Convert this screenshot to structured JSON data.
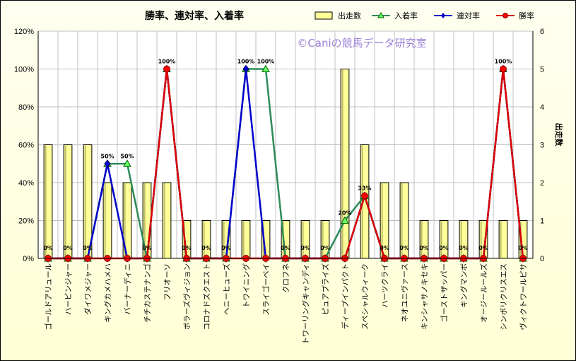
{
  "chart_data": {
    "type": "bar+line",
    "title": "勝率、連対率、入着率",
    "watermark": "©Caniの競馬データ研究室",
    "y2label": "出走数",
    "ylim": [
      0,
      120
    ],
    "y2lim": [
      0,
      6
    ],
    "y_ticks": [
      "0%",
      "20%",
      "40%",
      "60%",
      "80%",
      "100%",
      "120%"
    ],
    "y2_ticks": [
      "0",
      "1",
      "2",
      "3",
      "4",
      "5",
      "6"
    ],
    "legend_position": "top-right",
    "legend": [
      "出走数",
      "入着率",
      "連対率",
      "勝率"
    ],
    "categories": [
      "ゴールドアリュール",
      "ハービンジャー",
      "ダイワメジャー",
      "キングカメハメハ",
      "バーナーディニ",
      "チチカステナンゴ",
      "フリオーソ",
      "ボラーズヴィジョン",
      "コロナドズクエスト",
      "ヘニーヒューズ",
      "トワイニング",
      "スライゴーベイ",
      "クロフネ",
      "トワーリングキャンディ",
      "ピュアプライズ",
      "ディープインパクト",
      "スペシャルウィーク",
      "ハーツクライ",
      "ネオユニヴァース",
      "キンシャサノキセキ",
      "ゴーストザッパー",
      "キングマンボ",
      "オージールールズ",
      "シンボリクリスエス",
      "ヴィクトワールピサ"
    ],
    "series": [
      {
        "name": "出走数",
        "axis": "y2",
        "kind": "bar",
        "color": "#ffff99",
        "values": [
          3,
          3,
          3,
          2,
          2,
          2,
          2,
          1,
          1,
          1,
          1,
          1,
          1,
          1,
          1,
          5,
          3,
          2,
          2,
          1,
          1,
          1,
          1,
          1,
          1
        ]
      },
      {
        "name": "入着率",
        "axis": "y",
        "kind": "line",
        "color": "#2e8b57",
        "values": [
          0,
          0,
          0,
          50,
          50,
          0,
          100,
          0,
          0,
          0,
          100,
          100,
          0,
          0,
          0,
          20,
          33,
          0,
          0,
          0,
          0,
          0,
          0,
          100,
          0
        ]
      },
      {
        "name": "連対率",
        "axis": "y",
        "kind": "line",
        "color": "#0000cc",
        "values": [
          0,
          0,
          0,
          50,
          0,
          0,
          100,
          0,
          0,
          0,
          100,
          0,
          0,
          0,
          0,
          0,
          33,
          0,
          0,
          0,
          0,
          0,
          0,
          100,
          0
        ]
      },
      {
        "name": "勝率",
        "axis": "y",
        "kind": "line",
        "color": "#dd0000",
        "values": [
          0,
          0,
          0,
          0,
          0,
          0,
          100,
          0,
          0,
          0,
          0,
          0,
          0,
          0,
          0,
          0,
          33,
          0,
          0,
          0,
          0,
          0,
          0,
          100,
          0
        ]
      }
    ],
    "data_labels": [
      "0%",
      "0%",
      "0%",
      "50%",
      "50%",
      "0%",
      "100%",
      "0%",
      "0%",
      "0%",
      "100%",
      "100%",
      "0%",
      "0%",
      "0%",
      "20%",
      "33%",
      "0%",
      "0%",
      "0%",
      "0%",
      "0%",
      "0%",
      "100%",
      "0%"
    ]
  }
}
